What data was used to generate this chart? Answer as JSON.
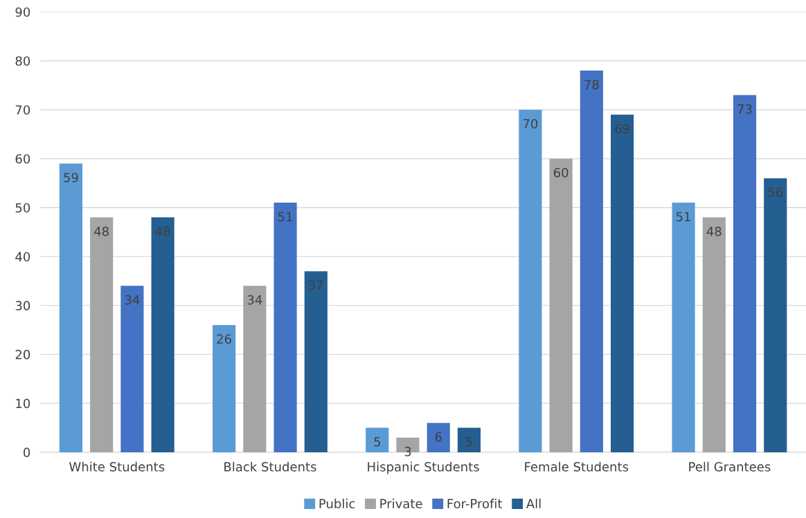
{
  "chart_data": {
    "type": "bar",
    "categories": [
      "White Students",
      "Black Students",
      "Hispanic Students",
      "Female Students",
      "Pell Grantees"
    ],
    "series": [
      {
        "name": "Public",
        "color": "#5b9bd5",
        "values": [
          59,
          26,
          5,
          70,
          51
        ]
      },
      {
        "name": "Private",
        "color": "#a5a5a5",
        "values": [
          48,
          34,
          3,
          60,
          48
        ]
      },
      {
        "name": "For-Profit",
        "color": "#4472c4",
        "values": [
          34,
          51,
          6,
          78,
          73
        ]
      },
      {
        "name": "All",
        "color": "#255e91",
        "values": [
          48,
          37,
          5,
          69,
          56
        ]
      }
    ],
    "ylim": [
      0,
      90
    ],
    "yticks": [
      0,
      10,
      20,
      30,
      40,
      50,
      60,
      70,
      80,
      90
    ],
    "grid": "y",
    "legend": "bottom",
    "data_labels": true
  }
}
